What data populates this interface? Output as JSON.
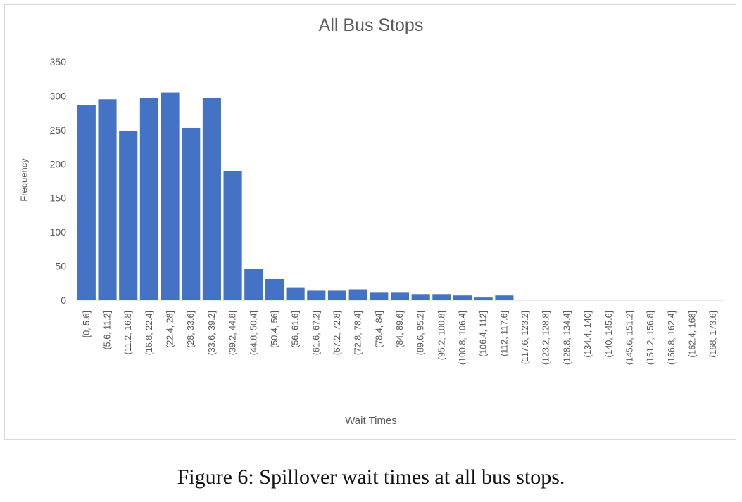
{
  "chart_data": {
    "type": "bar",
    "title": "All Bus Stops",
    "xlabel": "Wait Times",
    "ylabel": "Frequency",
    "ylim": [
      0,
      350
    ],
    "yticks": [
      0,
      50,
      100,
      150,
      200,
      250,
      300,
      350
    ],
    "grid": false,
    "legend": "none",
    "bar_color": "#4472c4",
    "categories": [
      "[0, 5.6]",
      "(5.6, 11.2]",
      "(11.2, 16.8]",
      "(16.8, 22.4]",
      "(22.4, 28]",
      "(28, 33.6]",
      "(33.6, 39.2]",
      "(39.2, 44.8]",
      "(44.8, 50.4]",
      "(50.4, 56]",
      "(56, 61.6]",
      "(61.6, 67.2]",
      "(67.2, 72.8]",
      "(72.8, 78.4]",
      "(78.4, 84]",
      "(84, 89.6]",
      "(89.6, 95.2]",
      "(95.2, 100.8]",
      "(100.8, 106.4]",
      "(106.4, 112]",
      "(112, 117.6]",
      "(117.6, 123.2]",
      "(123.2, 128.8]",
      "(128.8, 134.4]",
      "(134.4, 140]",
      "(140, 145.6]",
      "(145.6, 151.2]",
      "(151.2, 156.8]",
      "(156.8, 162.4]",
      "(162.4, 168]",
      "(168, 173.6]"
    ],
    "values": [
      287,
      295,
      248,
      297,
      305,
      253,
      297,
      190,
      46,
      31,
      19,
      14,
      14,
      16,
      11,
      11,
      9,
      9,
      7,
      4,
      7,
      1,
      1,
      1,
      1,
      1,
      1,
      1,
      1,
      1,
      1
    ]
  },
  "caption": "Figure 6: Spillover wait times at all bus stops."
}
